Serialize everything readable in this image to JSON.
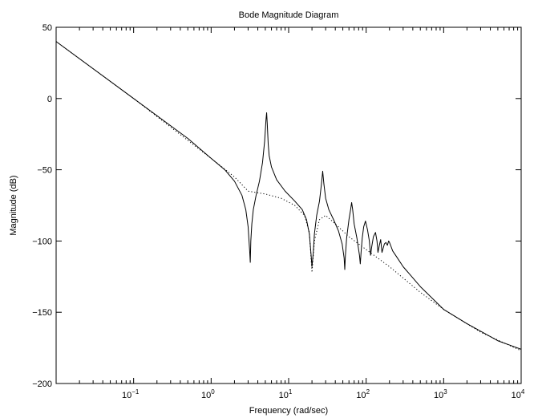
{
  "chart_data": {
    "type": "line",
    "title": "Bode Magnitude Diagram",
    "xlabel": "Frequency (rad/sec)",
    "ylabel": "Magnitude (dB)",
    "x_scale": "log",
    "xlim": [
      0.01,
      10000
    ],
    "ylim": [
      -200,
      50
    ],
    "grid": false,
    "legend": "none",
    "x_ticks": [
      {
        "base": "10",
        "exp": "−1",
        "value": 0.1
      },
      {
        "base": "10",
        "exp": "0",
        "value": 1
      },
      {
        "base": "10",
        "exp": "1",
        "value": 10
      },
      {
        "base": "10",
        "exp": "2",
        "value": 100
      },
      {
        "base": "10",
        "exp": "3",
        "value": 1000
      },
      {
        "base": "10",
        "exp": "4",
        "value": 10000
      }
    ],
    "y_ticks": [
      {
        "label": "50",
        "value": 50
      },
      {
        "label": "0",
        "value": 0
      },
      {
        "label": "−50",
        "value": -50
      },
      {
        "label": "−100",
        "value": -100
      },
      {
        "label": "−150",
        "value": -150
      },
      {
        "label": "−200",
        "value": -200
      }
    ],
    "series": [
      {
        "style": "solid",
        "color": "#000000",
        "x": [
          0.01,
          0.1,
          0.5,
          1.0,
          1.5,
          2.0,
          2.5,
          2.8,
          3.0,
          3.15,
          3.2,
          3.25,
          3.35,
          3.5,
          3.8,
          4.2,
          4.6,
          4.9,
          5.1,
          5.2,
          5.3,
          5.45,
          5.6,
          6.0,
          7.0,
          9.0,
          12.0,
          15.0,
          17.0,
          18.5,
          19.5,
          20.0,
          20.8,
          21.5,
          23.0,
          25.0,
          26.5,
          27.5,
          28.5,
          30.0,
          33.0,
          38.0,
          44.0,
          49.0,
          52.0,
          53.0,
          54.0,
          56.0,
          60.0,
          63.0,
          65.0,
          67.0,
          70.0,
          76.0,
          82.0,
          84.0,
          86.0,
          89.0,
          93.0,
          98.0,
          104.0,
          110.0,
          114.0,
          118.0,
          124.0,
          132.0,
          138.0,
          142.0,
          148.0,
          154.0,
          160.0,
          166.0,
          172.0,
          180.0,
          188.0,
          195.0,
          200.0,
          210.0,
          220.0,
          240.0,
          300.0,
          500.0,
          1000.0,
          2000.0,
          5000.0,
          10000.0
        ],
        "y": [
          40,
          0,
          -28,
          -42,
          -50,
          -58,
          -68,
          -78,
          -90,
          -108,
          -115,
          -100,
          -88,
          -78,
          -68,
          -58,
          -45,
          -30,
          -15,
          -10,
          -18,
          -32,
          -40,
          -48,
          -57,
          -65,
          -72,
          -78,
          -85,
          -95,
          -110,
          -118,
          -108,
          -95,
          -82,
          -72,
          -60,
          -51,
          -60,
          -70,
          -78,
          -85,
          -93,
          -102,
          -112,
          -120,
          -110,
          -98,
          -85,
          -78,
          -73,
          -78,
          -88,
          -98,
          -110,
          -116,
          -108,
          -98,
          -90,
          -86,
          -92,
          -100,
          -110,
          -104,
          -97,
          -94,
          -100,
          -108,
          -103,
          -99,
          -108,
          -105,
          -102,
          -101,
          -103,
          -100,
          -101,
          -104,
          -107,
          -110,
          -118,
          -132,
          -148,
          -158,
          -170,
          -176
        ]
      },
      {
        "style": "dotted",
        "color": "#000000",
        "x": [
          0.01,
          0.1,
          1.0,
          2.0,
          3.0,
          5.0,
          8.0,
          12.0,
          16.0,
          18.5,
          20.0,
          21.5,
          25.0,
          30.0,
          40.0,
          60.0,
          100.0,
          200.0,
          500.0,
          1000.0,
          3000.0,
          10000.0
        ],
        "y": [
          40,
          0,
          -42,
          -55,
          -65,
          -67,
          -70,
          -75,
          -82,
          -94,
          -122,
          -100,
          -85,
          -82,
          -88,
          -97,
          -106,
          -118,
          -136,
          -148,
          -164,
          -177
        ]
      }
    ]
  }
}
